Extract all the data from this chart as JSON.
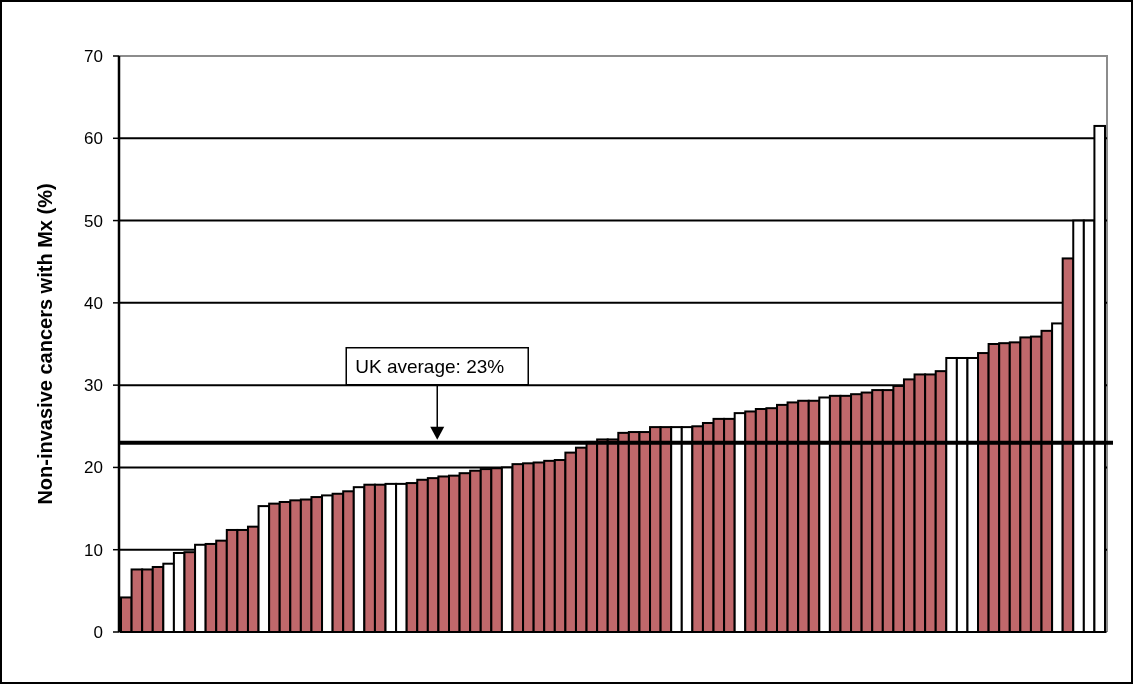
{
  "chart_data": {
    "type": "bar",
    "ylabel": "Non-invasive cancers with Mx (%)",
    "categories": [
      null,
      null,
      null,
      null,
      null,
      null,
      null,
      null,
      null,
      null,
      null,
      null,
      null,
      null,
      null,
      null,
      null,
      null,
      null,
      null,
      null,
      null,
      null,
      null,
      null,
      null,
      null,
      null,
      null,
      null,
      null,
      null,
      null,
      null,
      null,
      null,
      null,
      null,
      null,
      null,
      null,
      null,
      null,
      null,
      null,
      null,
      null,
      null,
      null,
      null,
      null,
      null,
      null,
      null,
      null,
      null,
      null,
      null,
      null,
      null,
      null,
      null,
      null,
      null,
      null,
      null,
      null,
      null,
      null,
      null,
      null,
      null,
      null,
      null,
      null,
      null,
      null,
      null,
      null,
      null,
      null,
      null,
      null,
      null,
      null,
      null,
      null,
      null,
      null,
      null,
      null,
      null,
      null
    ],
    "values": [
      4.2,
      7.6,
      7.6,
      7.9,
      8.3,
      9.6,
      9.7,
      10.6,
      10.7,
      11.1,
      12.4,
      12.4,
      12.8,
      15.3,
      15.6,
      15.8,
      16.0,
      16.1,
      16.4,
      16.6,
      16.8,
      17.1,
      17.6,
      17.9,
      17.9,
      18.0,
      18.0,
      18.1,
      18.5,
      18.7,
      18.9,
      19.0,
      19.3,
      19.6,
      19.8,
      19.9,
      20.0,
      20.4,
      20.5,
      20.6,
      20.8,
      20.9,
      21.8,
      22.4,
      23.1,
      23.4,
      23.4,
      24.2,
      24.3,
      24.3,
      24.9,
      24.9,
      24.9,
      24.9,
      25.0,
      25.4,
      25.9,
      25.9,
      26.6,
      26.8,
      27.1,
      27.2,
      27.6,
      27.9,
      28.1,
      28.1,
      28.5,
      28.7,
      28.7,
      28.9,
      29.1,
      29.4,
      29.4,
      29.9,
      30.7,
      31.3,
      31.3,
      31.7,
      33.3,
      33.3,
      33.3,
      33.9,
      35.0,
      35.1,
      35.2,
      35.8,
      35.9,
      36.6,
      37.5,
      45.4,
      50.0,
      50.0,
      61.5
    ],
    "colors": [
      "#c0686b",
      "#c0686b",
      "#c0686b",
      "#c0686b",
      "#ffffff",
      "#ffffff",
      "#c0686b",
      "#ffffff",
      "#c0686b",
      "#c0686b",
      "#c0686b",
      "#c0686b",
      "#c0686b",
      "#ffffff",
      "#c0686b",
      "#c0686b",
      "#c0686b",
      "#c0686b",
      "#c0686b",
      "#ffffff",
      "#c0686b",
      "#c0686b",
      "#ffffff",
      "#c0686b",
      "#c0686b",
      "#ffffff",
      "#ffffff",
      "#c0686b",
      "#c0686b",
      "#c0686b",
      "#c0686b",
      "#c0686b",
      "#c0686b",
      "#c0686b",
      "#c0686b",
      "#c0686b",
      "#ffffff",
      "#c0686b",
      "#c0686b",
      "#c0686b",
      "#c0686b",
      "#c0686b",
      "#c0686b",
      "#c0686b",
      "#c0686b",
      "#c0686b",
      "#c0686b",
      "#c0686b",
      "#c0686b",
      "#c0686b",
      "#c0686b",
      "#c0686b",
      "#ffffff",
      "#ffffff",
      "#c0686b",
      "#c0686b",
      "#c0686b",
      "#c0686b",
      "#ffffff",
      "#c0686b",
      "#c0686b",
      "#c0686b",
      "#c0686b",
      "#c0686b",
      "#c0686b",
      "#c0686b",
      "#ffffff",
      "#c0686b",
      "#c0686b",
      "#c0686b",
      "#c0686b",
      "#c0686b",
      "#c0686b",
      "#c0686b",
      "#c0686b",
      "#c0686b",
      "#c0686b",
      "#c0686b",
      "#ffffff",
      "#ffffff",
      "#ffffff",
      "#c0686b",
      "#c0686b",
      "#c0686b",
      "#c0686b",
      "#c0686b",
      "#c0686b",
      "#c0686b",
      "#ffffff",
      "#c0686b",
      "#ffffff",
      "#ffffff",
      "#ffffff"
    ],
    "ylim": [
      0,
      70
    ],
    "yticks": [
      0,
      10,
      20,
      30,
      40,
      50,
      60,
      70
    ],
    "grid": "y",
    "ref_lines": [
      {
        "axis": "y",
        "value": 23,
        "label": "UK average: 23%",
        "color": "#000000"
      }
    ]
  }
}
